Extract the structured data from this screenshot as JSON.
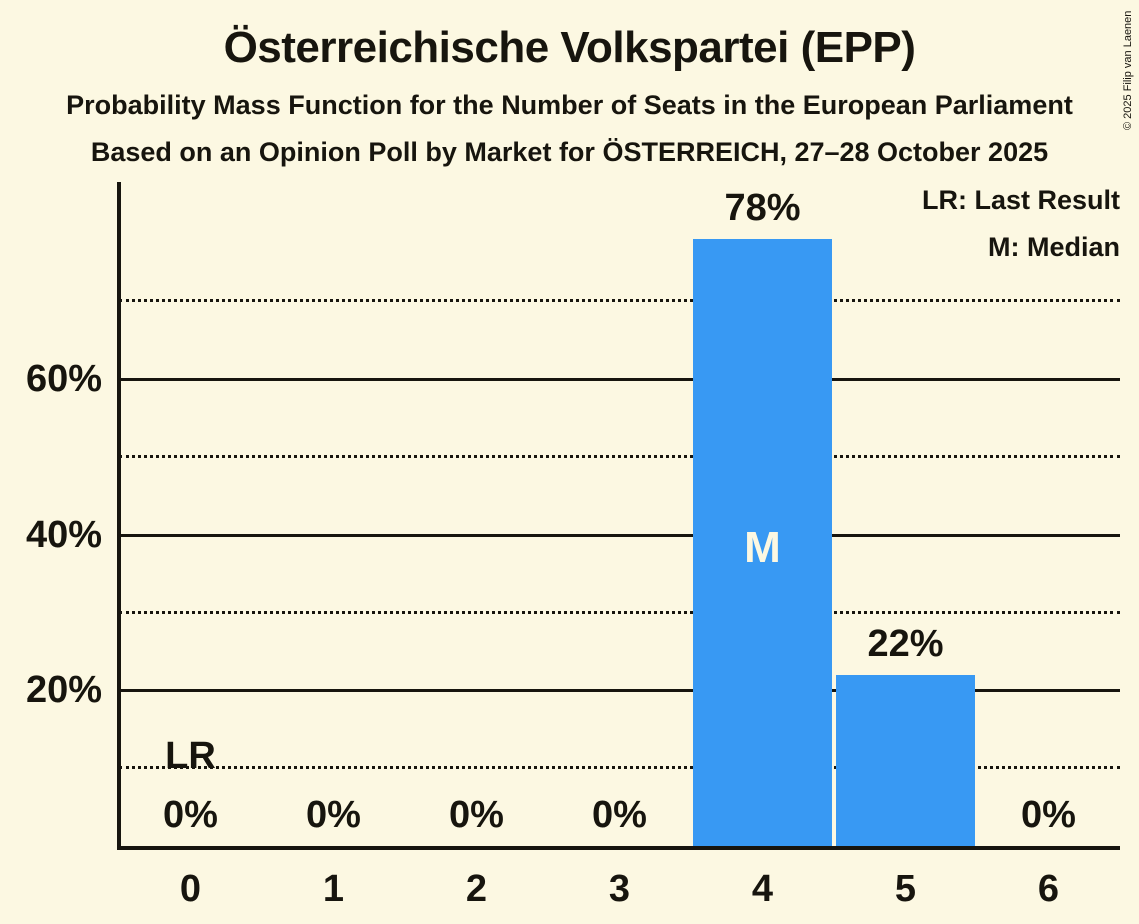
{
  "title": "Österreichische Volkspartei (EPP)",
  "subtitles": {
    "line1": "Probability Mass Function for the Number of Seats in the European Parliament",
    "line2": "Based on an Opinion Poll by Market for ÖSTERREICH, 27–28 October 2025"
  },
  "copyright": "© 2025 Filip van Laenen",
  "legend": {
    "last_result": "LR: Last Result",
    "median": "M: Median"
  },
  "colors": {
    "background": "#FCF8E2",
    "text": "#17150E",
    "bar": "#3899F3",
    "bar_inner_label": "#FCF8E2"
  },
  "chart_data": {
    "type": "bar",
    "title": "Österreichische Volkspartei (EPP)",
    "xlabel": "",
    "ylabel": "",
    "categories": [
      "0",
      "1",
      "2",
      "3",
      "4",
      "5",
      "6"
    ],
    "values": [
      0,
      0,
      0,
      0,
      78,
      22,
      0
    ],
    "value_labels": [
      "0%",
      "0%",
      "0%",
      "0%",
      "78%",
      "22%",
      "0%"
    ],
    "ylim": [
      0,
      85
    ],
    "yticks_solid": [
      {
        "value": 20,
        "label": "20%"
      },
      {
        "value": 40,
        "label": "40%"
      },
      {
        "value": 60,
        "label": "60%"
      }
    ],
    "yticks_dotted": [
      10,
      30,
      50,
      70
    ],
    "median": {
      "seat": 4,
      "marker": "M"
    },
    "last_result": {
      "seat": 0,
      "marker": "LR"
    },
    "grid": "horizontal",
    "legend_position": "top-right"
  }
}
